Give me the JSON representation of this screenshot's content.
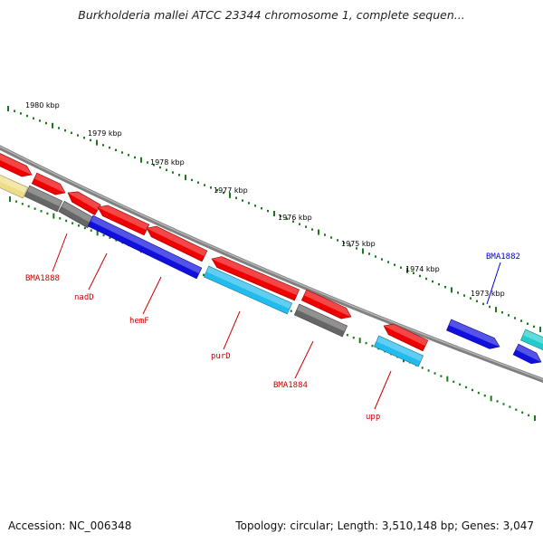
{
  "title": "Burkholderia mallei ATCC 23344 chromosome 1, complete sequen...",
  "footer": {
    "accession": "Accession: NC_006348",
    "topology": "Topology: circular; Length: 3,510,148 bp; Genes: 3,047"
  },
  "kbp_labels": [
    "1980 kbp",
    "1979 kbp",
    "1978 kbp",
    "1977 kbp",
    "1976 kbp",
    "1975 kbp",
    "1974 kbp",
    "1973 kbp"
  ],
  "gene_labels": [
    {
      "text": "BMA1888",
      "color": "#cc0000"
    },
    {
      "text": "nadD",
      "color": "#cc0000"
    },
    {
      "text": "hemF",
      "color": "#cc0000"
    },
    {
      "text": "purD",
      "color": "#cc0000"
    },
    {
      "text": "BMA1884",
      "color": "#cc0000"
    },
    {
      "text": "upp",
      "color": "#cc0000"
    },
    {
      "text": "BMA1882",
      "color": "#0000cc"
    }
  ],
  "feature_colors": {
    "cds": "#ee0000",
    "gene_grey": "#666666",
    "gene_blue": "#1010dd",
    "gene_cyan": "#22bbee",
    "gene_teal": "#22cccc",
    "gene_yellow": "#eedd88",
    "backbone": "#808080",
    "tick": "#1a7a1a"
  }
}
